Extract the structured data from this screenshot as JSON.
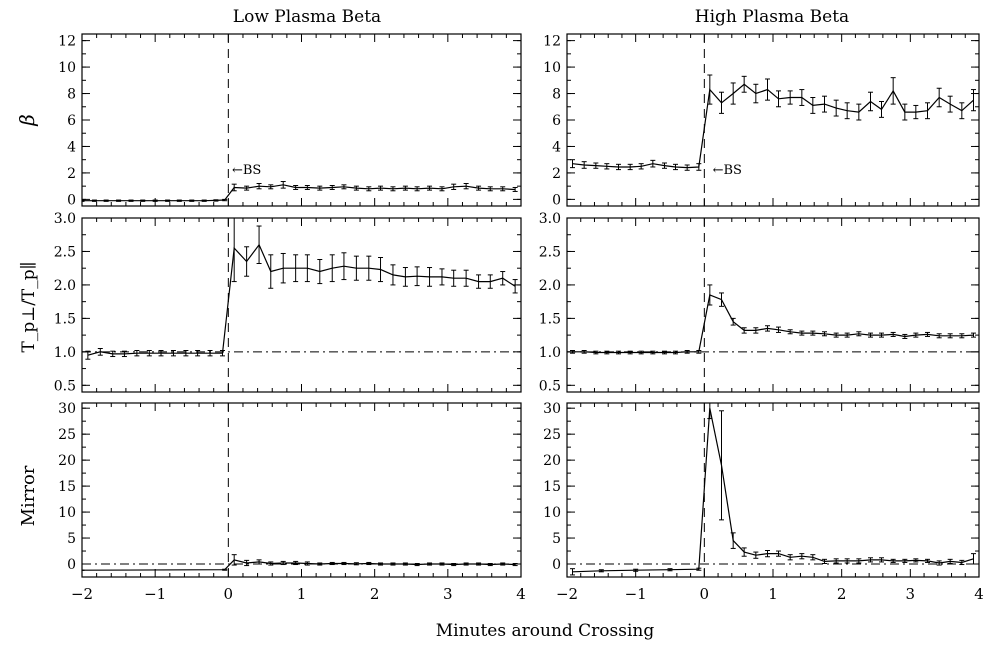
{
  "figure": {
    "column_titles": [
      "Low Plasma Beta",
      "High Plasma Beta"
    ],
    "row_labels": [
      "β",
      "T_p⊥/T_p∥",
      "Mirror"
    ],
    "xlabel": "Minutes around Crossing"
  },
  "chart_data": [
    {
      "type": "line",
      "column": "Low Plasma Beta",
      "row": "β",
      "xlim": [
        -2,
        4
      ],
      "ylim": [
        -0.5,
        12.5
      ],
      "yticks": [
        0,
        2,
        4,
        6,
        8,
        10,
        12
      ],
      "xticks": [
        -2,
        -1,
        0,
        1,
        2,
        3,
        4
      ],
      "annotation": "←BS",
      "annotation_x": 0.05,
      "annotation_y": 2.3,
      "vline_x": 0,
      "hline_y": null,
      "series": [
        {
          "x": [
            -2,
            -1.83,
            -1.67,
            -1.5,
            -1.33,
            -1.17,
            -1,
            -0.83,
            -0.67,
            -0.5,
            -0.33,
            -0.17,
            -0.05,
            0.08,
            0.25,
            0.42,
            0.58,
            0.75,
            0.92,
            1.08,
            1.25,
            1.42,
            1.58,
            1.75,
            1.92,
            2.08,
            2.25,
            2.42,
            2.58,
            2.75,
            2.92,
            3.08,
            3.25,
            3.42,
            3.58,
            3.75,
            3.92
          ],
          "y": [
            -0.1,
            -0.1,
            -0.1,
            -0.1,
            -0.1,
            -0.1,
            -0.1,
            -0.1,
            -0.1,
            -0.1,
            -0.1,
            -0.08,
            -0.05,
            0.9,
            0.85,
            1.0,
            0.95,
            1.1,
            0.9,
            0.9,
            0.85,
            0.9,
            0.95,
            0.85,
            0.8,
            0.85,
            0.8,
            0.85,
            0.8,
            0.85,
            0.8,
            0.95,
            1.0,
            0.85,
            0.8,
            0.8,
            0.75
          ],
          "err": [
            0.05,
            0.05,
            0.05,
            0.05,
            0.05,
            0.05,
            0.05,
            0.05,
            0.05,
            0.05,
            0.05,
            0.05,
            0.05,
            0.25,
            0.15,
            0.2,
            0.15,
            0.25,
            0.15,
            0.15,
            0.15,
            0.15,
            0.15,
            0.15,
            0.15,
            0.15,
            0.15,
            0.15,
            0.15,
            0.15,
            0.15,
            0.2,
            0.2,
            0.15,
            0.15,
            0.15,
            0.15
          ]
        }
      ]
    },
    {
      "type": "line",
      "column": "High Plasma Beta",
      "row": "β",
      "xlim": [
        -2,
        4
      ],
      "ylim": [
        -0.5,
        12.5
      ],
      "yticks": [
        0,
        2,
        4,
        6,
        8,
        10,
        12
      ],
      "xticks": [
        -2,
        -1,
        0,
        1,
        2,
        3,
        4
      ],
      "annotation": "←BS",
      "annotation_x": 0.12,
      "annotation_y": 2.3,
      "vline_x": 0,
      "hline_y": null,
      "series": [
        {
          "x": [
            -1.92,
            -1.75,
            -1.58,
            -1.42,
            -1.25,
            -1.08,
            -0.92,
            -0.75,
            -0.58,
            -0.42,
            -0.25,
            -0.08,
            0.08,
            0.25,
            0.42,
            0.58,
            0.75,
            0.92,
            1.08,
            1.25,
            1.42,
            1.58,
            1.75,
            1.92,
            2.08,
            2.25,
            2.42,
            2.58,
            2.75,
            2.92,
            3.08,
            3.25,
            3.42,
            3.58,
            3.75,
            3.92
          ],
          "y": [
            2.7,
            2.6,
            2.55,
            2.5,
            2.45,
            2.45,
            2.5,
            2.7,
            2.55,
            2.45,
            2.4,
            2.45,
            8.3,
            7.3,
            8.0,
            8.7,
            8.0,
            8.3,
            7.6,
            7.7,
            7.7,
            7.1,
            7.2,
            6.9,
            6.7,
            6.6,
            7.4,
            6.8,
            8.2,
            6.6,
            6.6,
            6.7,
            7.7,
            7.2,
            6.7,
            7.5
          ],
          "err": [
            0.3,
            0.25,
            0.2,
            0.2,
            0.2,
            0.2,
            0.2,
            0.25,
            0.2,
            0.2,
            0.2,
            0.25,
            1.1,
            0.8,
            0.8,
            0.6,
            0.7,
            0.8,
            0.6,
            0.5,
            0.6,
            0.6,
            0.6,
            0.6,
            0.6,
            0.6,
            0.7,
            0.6,
            1.0,
            0.6,
            0.5,
            0.6,
            0.7,
            0.6,
            0.6,
            0.8
          ]
        }
      ]
    },
    {
      "type": "line",
      "column": "Low Plasma Beta",
      "row": "T_p⊥/T_p∥",
      "xlim": [
        -2,
        4
      ],
      "ylim": [
        0.4,
        3.0
      ],
      "yticks": [
        0.5,
        1.0,
        1.5,
        2.0,
        2.5,
        3.0
      ],
      "xticks": [
        -2,
        -1,
        0,
        1,
        2,
        3,
        4
      ],
      "vline_x": 0,
      "hline_y": 1.0,
      "series": [
        {
          "x": [
            -1.92,
            -1.75,
            -1.58,
            -1.42,
            -1.25,
            -1.08,
            -0.92,
            -0.75,
            -0.58,
            -0.42,
            -0.25,
            -0.08,
            0.08,
            0.25,
            0.42,
            0.58,
            0.75,
            0.92,
            1.08,
            1.25,
            1.42,
            1.58,
            1.75,
            1.92,
            2.08,
            2.25,
            2.42,
            2.58,
            2.75,
            2.92,
            3.08,
            3.25,
            3.42,
            3.58,
            3.75,
            3.92
          ],
          "y": [
            0.95,
            1.0,
            0.97,
            0.97,
            0.98,
            0.98,
            0.98,
            0.98,
            0.98,
            0.98,
            0.98,
            0.98,
            2.55,
            2.35,
            2.6,
            2.2,
            2.25,
            2.25,
            2.25,
            2.2,
            2.25,
            2.28,
            2.25,
            2.25,
            2.23,
            2.15,
            2.12,
            2.13,
            2.12,
            2.12,
            2.1,
            2.1,
            2.05,
            2.05,
            2.1,
            1.98
          ],
          "err": [
            0.06,
            0.05,
            0.04,
            0.04,
            0.04,
            0.04,
            0.04,
            0.04,
            0.04,
            0.04,
            0.04,
            0.04,
            0.5,
            0.22,
            0.28,
            0.25,
            0.22,
            0.2,
            0.2,
            0.18,
            0.2,
            0.2,
            0.18,
            0.18,
            0.18,
            0.15,
            0.14,
            0.14,
            0.14,
            0.12,
            0.12,
            0.12,
            0.1,
            0.1,
            0.1,
            0.1
          ]
        }
      ]
    },
    {
      "type": "line",
      "column": "High Plasma Beta",
      "row": "T_p⊥/T_p∥",
      "xlim": [
        -2,
        4
      ],
      "ylim": [
        0.4,
        3.0
      ],
      "yticks": [
        0.5,
        1.0,
        1.5,
        2.0,
        2.5,
        3.0
      ],
      "xticks": [
        -2,
        -1,
        0,
        1,
        2,
        3,
        4
      ],
      "vline_x": 0,
      "hline_y": 1.0,
      "series": [
        {
          "x": [
            -1.92,
            -1.75,
            -1.58,
            -1.42,
            -1.25,
            -1.08,
            -0.92,
            -0.75,
            -0.58,
            -0.42,
            -0.25,
            -0.08,
            0.08,
            0.25,
            0.42,
            0.58,
            0.75,
            0.92,
            1.08,
            1.25,
            1.42,
            1.58,
            1.75,
            1.92,
            2.08,
            2.25,
            2.42,
            2.58,
            2.75,
            2.92,
            3.08,
            3.25,
            3.42,
            3.58,
            3.75,
            3.92
          ],
          "y": [
            1.0,
            1.0,
            0.99,
            0.99,
            0.99,
            0.99,
            0.99,
            0.99,
            0.99,
            0.99,
            1.0,
            1.0,
            1.85,
            1.78,
            1.45,
            1.32,
            1.32,
            1.35,
            1.33,
            1.3,
            1.28,
            1.28,
            1.27,
            1.25,
            1.25,
            1.27,
            1.25,
            1.25,
            1.26,
            1.23,
            1.25,
            1.26,
            1.24,
            1.24,
            1.24,
            1.25
          ],
          "err": [
            0.02,
            0.02,
            0.02,
            0.02,
            0.02,
            0.02,
            0.02,
            0.02,
            0.02,
            0.02,
            0.02,
            0.02,
            0.15,
            0.1,
            0.05,
            0.04,
            0.04,
            0.04,
            0.04,
            0.03,
            0.03,
            0.03,
            0.03,
            0.03,
            0.03,
            0.03,
            0.03,
            0.03,
            0.03,
            0.03,
            0.03,
            0.03,
            0.03,
            0.03,
            0.03,
            0.03
          ]
        }
      ]
    },
    {
      "type": "line",
      "column": "Low Plasma Beta",
      "row": "Mirror",
      "xlim": [
        -2,
        4
      ],
      "ylim": [
        -2.5,
        31
      ],
      "yticks": [
        0,
        5,
        10,
        15,
        20,
        25,
        30
      ],
      "xticks": [
        -2,
        -1,
        0,
        1,
        2,
        3,
        4
      ],
      "vline_x": 0,
      "hline_y": 0,
      "series": [
        {
          "x": [
            -2,
            -0.05,
            0.08,
            0.25,
            0.42,
            0.58,
            0.75,
            0.92,
            1.08,
            1.25,
            1.42,
            1.58,
            1.75,
            1.92,
            2.08,
            2.25,
            2.42,
            2.58,
            2.75,
            2.92,
            3.08,
            3.25,
            3.42,
            3.58,
            3.75,
            3.92
          ],
          "y": [
            -1.2,
            -1.1,
            0.8,
            0.2,
            0.4,
            0.1,
            0.2,
            0.2,
            0.1,
            0.0,
            0.1,
            0.1,
            0.05,
            0.1,
            0.0,
            0.0,
            0.0,
            -0.1,
            0.0,
            0.0,
            -0.1,
            0.0,
            0.0,
            -0.1,
            0.0,
            -0.1
          ],
          "err": [
            0,
            0.1,
            1.0,
            0.5,
            0.4,
            0.3,
            0.3,
            0.3,
            0.3,
            0.2,
            0.2,
            0.2,
            0.2,
            0.2,
            0.2,
            0.2,
            0.2,
            0.2,
            0.2,
            0.2,
            0.2,
            0.2,
            0.2,
            0.2,
            0.2,
            0.2
          ]
        }
      ]
    },
    {
      "type": "line",
      "column": "High Plasma Beta",
      "row": "Mirror",
      "xlim": [
        -2,
        4
      ],
      "ylim": [
        -2.5,
        31
      ],
      "yticks": [
        0,
        5,
        10,
        15,
        20,
        25,
        30
      ],
      "xticks": [
        -2,
        -1,
        0,
        1,
        2,
        3,
        4
      ],
      "vline_x": 0,
      "hline_y": 0,
      "series": [
        {
          "x": [
            -1.92,
            -1.5,
            -1.0,
            -0.5,
            -0.08,
            0.08,
            0.25,
            0.42,
            0.58,
            0.75,
            0.92,
            1.08,
            1.25,
            1.42,
            1.58,
            1.75,
            1.92,
            2.08,
            2.25,
            2.42,
            2.58,
            2.75,
            2.92,
            3.08,
            3.25,
            3.42,
            3.58,
            3.75,
            3.92
          ],
          "y": [
            -1.5,
            -1.3,
            -1.2,
            -1.1,
            -1.0,
            30,
            19,
            4.5,
            2.3,
            1.7,
            2.0,
            2.0,
            1.3,
            1.5,
            1.3,
            0.5,
            0.6,
            0.6,
            0.6,
            0.8,
            0.8,
            0.6,
            0.6,
            0.7,
            0.6,
            0.2,
            0.5,
            0.3,
            1.0
          ],
          "err": [
            0.6,
            0.2,
            0.2,
            0.2,
            0.2,
            2.0,
            10.5,
            1.5,
            0.8,
            0.6,
            0.6,
            0.5,
            0.5,
            0.5,
            0.5,
            0.4,
            0.4,
            0.4,
            0.4,
            0.4,
            0.4,
            0.3,
            0.3,
            0.3,
            0.3,
            0.4,
            0.4,
            0.4,
            1.0
          ]
        }
      ]
    }
  ]
}
